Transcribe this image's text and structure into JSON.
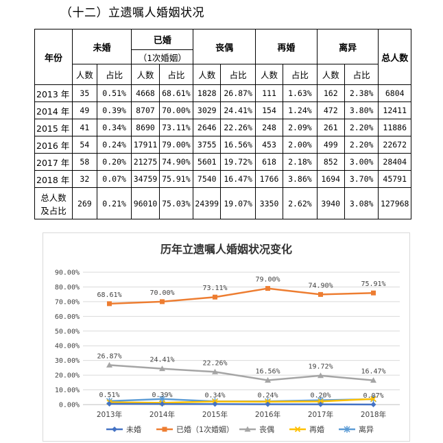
{
  "section_title": "（十二）立遗嘱人婚姻状况",
  "table": {
    "year_header": "年份",
    "total_header": "总人数",
    "groups": [
      {
        "label": "未婚",
        "sublabel": ""
      },
      {
        "label": "已婚",
        "sublabel": "（1次婚姻）"
      },
      {
        "label": "丧偶",
        "sublabel": ""
      },
      {
        "label": "再婚",
        "sublabel": ""
      },
      {
        "label": "离异",
        "sublabel": ""
      }
    ],
    "count_label": "人数",
    "ratio_label": "占比",
    "rows": [
      {
        "year": "2013 年",
        "cells": [
          "35",
          "0.51%",
          "4668",
          "68.61%",
          "1828",
          "26.87%",
          "111",
          "1.63%",
          "162",
          "2.38%"
        ],
        "total": "6804"
      },
      {
        "year": "2014 年",
        "cells": [
          "49",
          "0.39%",
          "8707",
          "70.00%",
          "3029",
          "24.41%",
          "154",
          "1.24%",
          "472",
          "3.80%"
        ],
        "total": "12411"
      },
      {
        "year": "2015 年",
        "cells": [
          "41",
          "0.34%",
          "8690",
          "73.11%",
          "2646",
          "22.26%",
          "248",
          "2.09%",
          "261",
          "2.20%"
        ],
        "total": "11886"
      },
      {
        "year": "2016 年",
        "cells": [
          "54",
          "0.24%",
          "17911",
          "79.00%",
          "3755",
          "16.56%",
          "453",
          "2.00%",
          "499",
          "2.20%"
        ],
        "total": "22672"
      },
      {
        "year": "2017 年",
        "cells": [
          "58",
          "0.20%",
          "21275",
          "74.90%",
          "5601",
          "19.72%",
          "618",
          "2.18%",
          "852",
          "3.00%"
        ],
        "total": "28404"
      },
      {
        "year": "2018 年",
        "cells": [
          "32",
          "0.07%",
          "34759",
          "75.91%",
          "7540",
          "16.47%",
          "1766",
          "3.86%",
          "1694",
          "3.70%"
        ],
        "total": "45791"
      }
    ],
    "summary_row": {
      "label_line1": "总人数",
      "label_line2": "及占比",
      "cells": [
        "269",
        "0.21%",
        "96010",
        "75.03%",
        "24399",
        "19.07%",
        "3350",
        "2.62%",
        "3940",
        "3.08%"
      ],
      "total": "127968"
    }
  },
  "chart_data": {
    "type": "line",
    "title": "历年立遗嘱人婚姻状况变化",
    "categories": [
      "2013年",
      "2014年",
      "2015年",
      "2016年",
      "2017年",
      "2018年"
    ],
    "ylim": [
      0,
      90
    ],
    "yticks": [
      "0.00%",
      "10.00%",
      "20.00%",
      "30.00%",
      "40.00%",
      "50.00%",
      "60.00%",
      "70.00%",
      "80.00%",
      "90.00%"
    ],
    "grid": true,
    "legend_position": "bottom",
    "series": [
      {
        "name": "未婚",
        "color": "#4472C4",
        "marker": "diamond",
        "values": [
          0.51,
          0.39,
          0.34,
          0.24,
          0.2,
          0.07
        ],
        "labels": [
          "0.51%",
          "0.39%",
          "0.34%",
          "0.24%",
          "0.20%",
          "0.07%"
        ]
      },
      {
        "name": "已婚（1次婚姻）",
        "color": "#ED7D31",
        "marker": "square",
        "values": [
          68.61,
          70.0,
          73.11,
          79.0,
          74.9,
          75.91
        ],
        "labels": [
          "68.61%",
          "70.00%",
          "73.11%",
          "79.00%",
          "74.90%",
          "75.91%"
        ]
      },
      {
        "name": "丧偶",
        "color": "#A5A5A5",
        "marker": "triangle",
        "values": [
          26.87,
          24.41,
          22.26,
          16.56,
          19.72,
          16.47
        ],
        "labels": [
          "26.87%",
          "24.41%",
          "22.26%",
          "16.56%",
          "19.72%",
          "16.47%"
        ]
      },
      {
        "name": "再婚",
        "color": "#FFC000",
        "marker": "x",
        "values": [
          1.63,
          1.24,
          2.09,
          2.0,
          2.18,
          3.86
        ],
        "labels": []
      },
      {
        "name": "离异",
        "color": "#5B9BD5",
        "marker": "star",
        "values": [
          2.38,
          3.8,
          2.2,
          2.2,
          3.0,
          3.7
        ],
        "labels": []
      }
    ]
  }
}
